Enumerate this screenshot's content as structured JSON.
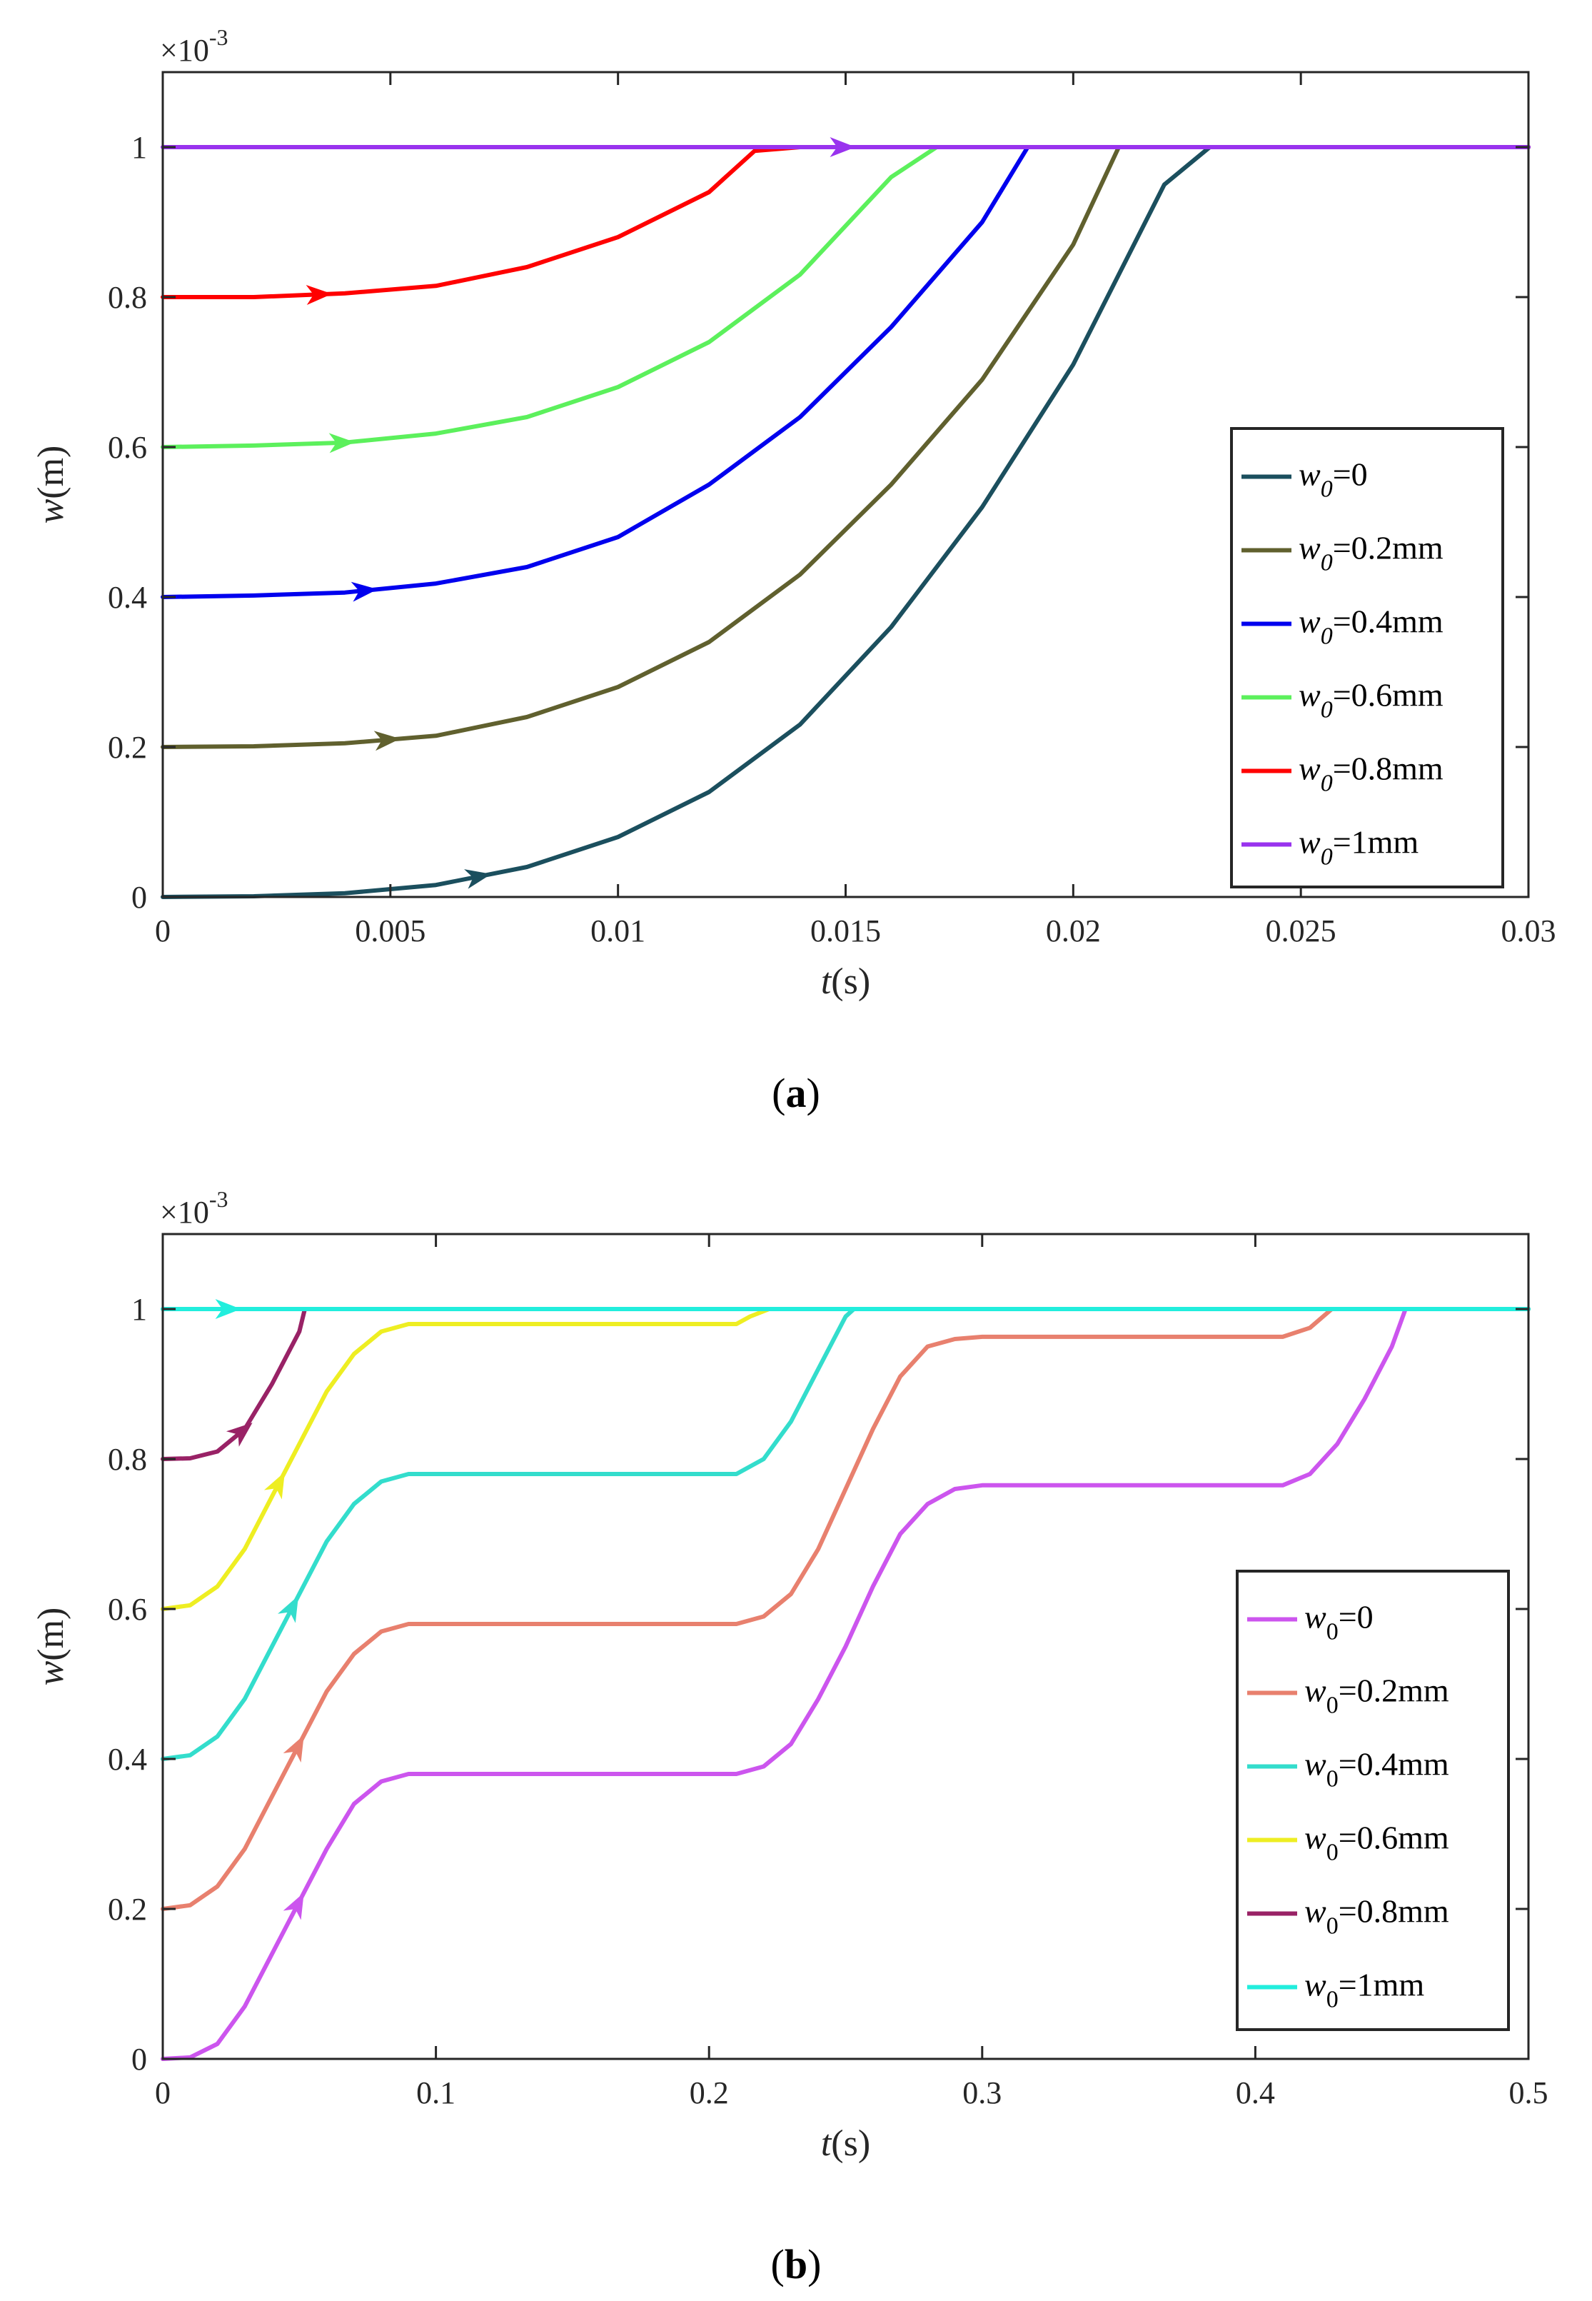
{
  "chart_data": [
    {
      "type": "line",
      "panel": "a",
      "caption_open": "(",
      "caption_letter": "a",
      "caption_close": ")",
      "exponent": "×10",
      "exponent_power": "-3",
      "xlabel": {
        "var": "t",
        "unit": "(s)"
      },
      "ylabel": {
        "var": "w",
        "unit": "(m)"
      },
      "xlim": [
        0,
        0.03
      ],
      "ylim": [
        0,
        1.1
      ],
      "xticks": [
        0,
        0.005,
        0.01,
        0.015,
        0.02,
        0.025,
        0.03
      ],
      "xtick_labels": [
        "0",
        "0.005",
        "0.01",
        "0.015",
        "0.02",
        "0.025",
        "0.03"
      ],
      "yticks": [
        0,
        0.2,
        0.4,
        0.6,
        0.8,
        1
      ],
      "ytick_labels": [
        "0",
        "0.2",
        "0.4",
        "0.6",
        "0.8",
        "1"
      ],
      "legend_position": "lower-right",
      "series": [
        {
          "name": "w0=0",
          "legend_var": "w",
          "legend_sub": "0",
          "legend_value": "=0",
          "color": "#1b4f5e",
          "arrow_x": 0.007,
          "x": [
            0,
            0.002,
            0.004,
            0.006,
            0.008,
            0.01,
            0.012,
            0.014,
            0.016,
            0.018,
            0.02,
            0.022,
            0.023,
            0.03
          ],
          "y": [
            0,
            0.001,
            0.005,
            0.016,
            0.04,
            0.08,
            0.14,
            0.23,
            0.36,
            0.52,
            0.71,
            0.95,
            1,
            1
          ]
        },
        {
          "name": "w0=0.2mm",
          "legend_var": "w",
          "legend_sub": "0",
          "legend_value": "=0.2mm",
          "color": "#60602e",
          "arrow_x": 0.005,
          "x": [
            0,
            0.002,
            0.004,
            0.006,
            0.008,
            0.01,
            0.012,
            0.014,
            0.016,
            0.018,
            0.02,
            0.021,
            0.03
          ],
          "y": [
            0.2,
            0.201,
            0.205,
            0.215,
            0.24,
            0.28,
            0.34,
            0.43,
            0.55,
            0.69,
            0.87,
            1,
            1
          ]
        },
        {
          "name": "w0=0.4mm",
          "legend_var": "w",
          "legend_sub": "0",
          "legend_value": "=0.4mm",
          "color": "#0000ee",
          "arrow_x": 0.0045,
          "x": [
            0,
            0.002,
            0.004,
            0.006,
            0.008,
            0.01,
            0.012,
            0.014,
            0.016,
            0.018,
            0.019,
            0.03
          ],
          "y": [
            0.4,
            0.402,
            0.406,
            0.418,
            0.44,
            0.48,
            0.55,
            0.64,
            0.76,
            0.9,
            1,
            1
          ]
        },
        {
          "name": "w0=0.6mm",
          "legend_var": "w",
          "legend_sub": "0",
          "legend_value": "=0.6mm",
          "color": "#5cf05c",
          "arrow_x": 0.004,
          "x": [
            0,
            0.002,
            0.004,
            0.006,
            0.008,
            0.01,
            0.012,
            0.014,
            0.016,
            0.017,
            0.03
          ],
          "y": [
            0.6,
            0.602,
            0.606,
            0.618,
            0.64,
            0.68,
            0.74,
            0.83,
            0.96,
            1,
            1
          ]
        },
        {
          "name": "w0=0.8mm",
          "legend_var": "w",
          "legend_sub": "0",
          "legend_value": "=0.8mm",
          "color": "#ff0000",
          "arrow_x": 0.0035,
          "x": [
            0,
            0.002,
            0.004,
            0.006,
            0.008,
            0.01,
            0.012,
            0.013,
            0.014,
            0.03
          ],
          "y": [
            0.8,
            0.8,
            0.805,
            0.815,
            0.84,
            0.88,
            0.94,
            0.995,
            1,
            1
          ]
        },
        {
          "name": "w0=1mm",
          "legend_var": "w",
          "legend_sub": "0",
          "legend_value": "=1mm",
          "color": "#9933ee",
          "arrow_x": 0.015,
          "x": [
            0,
            0.03
          ],
          "y": [
            1,
            1
          ]
        }
      ]
    },
    {
      "type": "line",
      "panel": "b",
      "caption_open": "(",
      "caption_letter": "b",
      "caption_close": ")",
      "exponent": "×10",
      "exponent_power": "-3",
      "xlabel": {
        "var": "t",
        "unit": "(s)"
      },
      "ylabel": {
        "var": "w",
        "unit": "(m)"
      },
      "xlim": [
        0,
        0.5
      ],
      "ylim": [
        0,
        1.1
      ],
      "xticks": [
        0,
        0.1,
        0.2,
        0.3,
        0.4,
        0.5
      ],
      "xtick_labels": [
        "0",
        "0.1",
        "0.2",
        "0.3",
        "0.4",
        "0.5"
      ],
      "yticks": [
        0,
        0.2,
        0.4,
        0.6,
        0.8,
        1
      ],
      "ytick_labels": [
        "0",
        "0.2",
        "0.4",
        "0.6",
        "0.8",
        "1"
      ],
      "legend_position": "lower-right",
      "series": [
        {
          "name": "w0=0",
          "legend_var": "w",
          "legend_sub": "0",
          "legend_value": "=0",
          "color": "#cc55ee",
          "arrow_x": 0.05,
          "x": [
            0,
            0.01,
            0.02,
            0.03,
            0.04,
            0.05,
            0.06,
            0.07,
            0.08,
            0.09,
            0.1,
            0.21,
            0.22,
            0.23,
            0.24,
            0.25,
            0.26,
            0.27,
            0.28,
            0.29,
            0.3,
            0.41,
            0.42,
            0.43,
            0.44,
            0.45,
            0.455,
            0.5
          ],
          "y": [
            0,
            0.002,
            0.02,
            0.07,
            0.14,
            0.21,
            0.28,
            0.34,
            0.37,
            0.38,
            0.38,
            0.38,
            0.39,
            0.42,
            0.48,
            0.55,
            0.63,
            0.7,
            0.74,
            0.76,
            0.765,
            0.765,
            0.78,
            0.82,
            0.88,
            0.95,
            1,
            1
          ]
        },
        {
          "name": "w0=0.2mm",
          "legend_var": "w",
          "legend_sub": "0",
          "legend_value": "=0.2mm",
          "color": "#e8806e",
          "arrow_x": 0.05,
          "x": [
            0,
            0.01,
            0.02,
            0.03,
            0.04,
            0.05,
            0.06,
            0.07,
            0.08,
            0.09,
            0.1,
            0.21,
            0.22,
            0.23,
            0.24,
            0.25,
            0.26,
            0.27,
            0.28,
            0.29,
            0.3,
            0.41,
            0.42,
            0.428,
            0.5
          ],
          "y": [
            0.2,
            0.205,
            0.23,
            0.28,
            0.35,
            0.42,
            0.49,
            0.54,
            0.57,
            0.58,
            0.58,
            0.58,
            0.59,
            0.62,
            0.68,
            0.76,
            0.84,
            0.91,
            0.95,
            0.96,
            0.963,
            0.963,
            0.975,
            1,
            1
          ]
        },
        {
          "name": "w0=0.4mm",
          "legend_var": "w",
          "legend_sub": "0",
          "legend_value": "=0.4mm",
          "color": "#33ddcc",
          "arrow_x": 0.048,
          "x": [
            0,
            0.01,
            0.02,
            0.03,
            0.04,
            0.05,
            0.06,
            0.07,
            0.08,
            0.09,
            0.1,
            0.21,
            0.22,
            0.23,
            0.24,
            0.25,
            0.253,
            0.5
          ],
          "y": [
            0.4,
            0.405,
            0.43,
            0.48,
            0.55,
            0.62,
            0.69,
            0.74,
            0.77,
            0.78,
            0.78,
            0.78,
            0.8,
            0.85,
            0.92,
            0.99,
            1,
            1
          ]
        },
        {
          "name": "w0=0.6mm",
          "legend_var": "w",
          "legend_sub": "0",
          "legend_value": "=0.6mm",
          "color": "#eeee22",
          "arrow_x": 0.043,
          "x": [
            0,
            0.01,
            0.02,
            0.03,
            0.04,
            0.05,
            0.06,
            0.07,
            0.08,
            0.09,
            0.1,
            0.21,
            0.215,
            0.222,
            0.5
          ],
          "y": [
            0.6,
            0.605,
            0.63,
            0.68,
            0.75,
            0.82,
            0.89,
            0.94,
            0.97,
            0.98,
            0.98,
            0.98,
            0.99,
            1,
            1
          ]
        },
        {
          "name": "w0=0.8mm",
          "legend_var": "w",
          "legend_sub": "0",
          "legend_value": "=0.8mm",
          "color": "#992266",
          "arrow_x": 0.03,
          "x": [
            0,
            0.01,
            0.02,
            0.03,
            0.04,
            0.05,
            0.052,
            0.5
          ],
          "y": [
            0.8,
            0.801,
            0.81,
            0.84,
            0.9,
            0.97,
            1,
            1
          ]
        },
        {
          "name": "w0=1mm",
          "legend_var": "w",
          "legend_sub": "0",
          "legend_value": "=1mm",
          "color": "#22eedd",
          "arrow_x": 0.025,
          "x": [
            0,
            0.5
          ],
          "y": [
            1,
            1
          ]
        }
      ]
    }
  ]
}
